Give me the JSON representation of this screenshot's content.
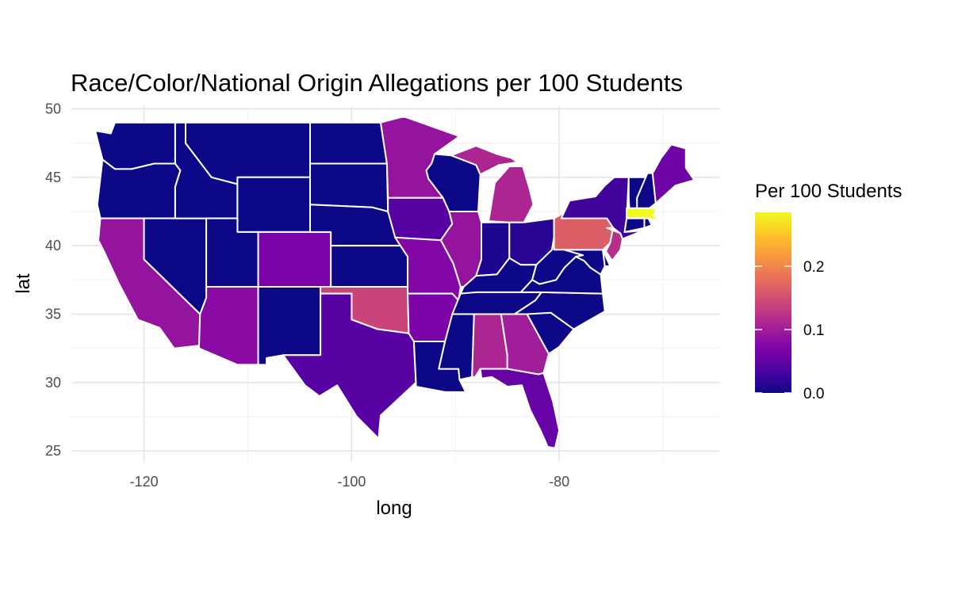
{
  "chart_data": {
    "type": "choropleth",
    "title": "Race/Color/National Origin Allegations per 100 Students",
    "xlabel": "long",
    "ylabel": "lat",
    "xlim": [
      -127,
      -64.5
    ],
    "ylim": [
      24.2,
      50.2
    ],
    "x_ticks": [
      {
        "value": -120,
        "label": "-120"
      },
      {
        "value": -100,
        "label": "-100"
      },
      {
        "value": -80,
        "label": "-80"
      }
    ],
    "y_ticks": [
      {
        "value": 25,
        "label": "25"
      },
      {
        "value": 30,
        "label": "30"
      },
      {
        "value": 35,
        "label": "35"
      },
      {
        "value": 40,
        "label": "40"
      },
      {
        "value": 45,
        "label": "45"
      },
      {
        "value": 50,
        "label": "50"
      }
    ],
    "grid": true,
    "legend": {
      "title": "Per 100 Students",
      "position": "right",
      "palette": "plasma",
      "range": [
        0,
        0.285
      ],
      "breaks": [
        {
          "value": 0.0,
          "label": "0.0"
        },
        {
          "value": 0.1,
          "label": "0.1"
        },
        {
          "value": 0.2,
          "label": "0.2"
        }
      ]
    },
    "states": [
      {
        "name": "Washington",
        "value": 0.0
      },
      {
        "name": "Oregon",
        "value": 0.0
      },
      {
        "name": "California",
        "value": 0.09
      },
      {
        "name": "Nevada",
        "value": 0.0
      },
      {
        "name": "Idaho",
        "value": 0.0
      },
      {
        "name": "Montana",
        "value": 0.0
      },
      {
        "name": "Wyoming",
        "value": 0.0
      },
      {
        "name": "Utah",
        "value": 0.0
      },
      {
        "name": "Arizona",
        "value": 0.08
      },
      {
        "name": "Colorado",
        "value": 0.07
      },
      {
        "name": "New Mexico",
        "value": 0.0
      },
      {
        "name": "North Dakota",
        "value": 0.0
      },
      {
        "name": "South Dakota",
        "value": 0.0
      },
      {
        "name": "Nebraska",
        "value": 0.0
      },
      {
        "name": "Kansas",
        "value": 0.0
      },
      {
        "name": "Oklahoma",
        "value": 0.14
      },
      {
        "name": "Texas",
        "value": 0.045
      },
      {
        "name": "Minnesota",
        "value": 0.09
      },
      {
        "name": "Iowa",
        "value": 0.045
      },
      {
        "name": "Missouri",
        "value": 0.075
      },
      {
        "name": "Arkansas",
        "value": 0.07
      },
      {
        "name": "Louisiana",
        "value": 0.0
      },
      {
        "name": "Wisconsin",
        "value": 0.0
      },
      {
        "name": "Illinois",
        "value": 0.09
      },
      {
        "name": "Michigan",
        "value": 0.11
      },
      {
        "name": "Indiana",
        "value": 0.01
      },
      {
        "name": "Ohio",
        "value": 0.015
      },
      {
        "name": "Kentucky",
        "value": 0.0
      },
      {
        "name": "Tennessee",
        "value": 0.0
      },
      {
        "name": "Mississippi",
        "value": 0.0
      },
      {
        "name": "Alabama",
        "value": 0.11
      },
      {
        "name": "Georgia",
        "value": 0.1
      },
      {
        "name": "Florida",
        "value": 0.055
      },
      {
        "name": "South Carolina",
        "value": 0.0
      },
      {
        "name": "North Carolina",
        "value": 0.0
      },
      {
        "name": "Virginia",
        "value": 0.0
      },
      {
        "name": "West Virginia",
        "value": 0.0
      },
      {
        "name": "Maryland",
        "value": 0.0
      },
      {
        "name": "Delaware",
        "value": 0.0
      },
      {
        "name": "Pennsylvania",
        "value": 0.165
      },
      {
        "name": "New Jersey",
        "value": 0.12
      },
      {
        "name": "New York",
        "value": 0.03
      },
      {
        "name": "Connecticut",
        "value": 0.0
      },
      {
        "name": "Rhode Island",
        "value": 0.0
      },
      {
        "name": "Massachusetts",
        "value": 0.285
      },
      {
        "name": "Vermont",
        "value": 0.0
      },
      {
        "name": "New Hampshire",
        "value": 0.0
      },
      {
        "name": "Maine",
        "value": 0.06
      }
    ]
  }
}
